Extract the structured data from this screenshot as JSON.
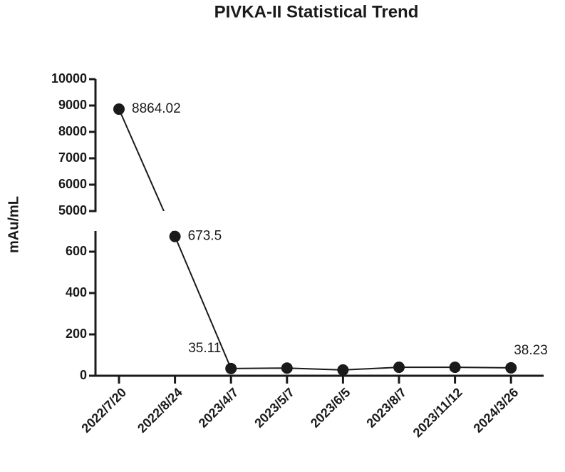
{
  "chart_data": {
    "type": "line",
    "title": "PIVKA-II Statistical Trend",
    "ylabel": "mAu/mL",
    "categories": [
      "2022/7/20",
      "2022/8/24",
      "2023/4/7",
      "2023/5/7",
      "2023/6/5",
      "2023/8/7",
      "2023/11/12",
      "2024/3/26"
    ],
    "values": [
      8864.02,
      673.5,
      35.11,
      37,
      28,
      41,
      41,
      38.23
    ],
    "value_labels": [
      "8864.02",
      "673.5",
      "35.11",
      null,
      null,
      null,
      null,
      "38.23"
    ],
    "color": "#1a1a1a",
    "y_segments": [
      {
        "ylim": [
          0,
          700
        ],
        "yticks": [
          0,
          200,
          400,
          600
        ]
      },
      {
        "ylim": [
          5000,
          10000
        ],
        "yticks": [
          5000,
          6000,
          7000,
          8000,
          9000,
          10000
        ]
      }
    ]
  }
}
